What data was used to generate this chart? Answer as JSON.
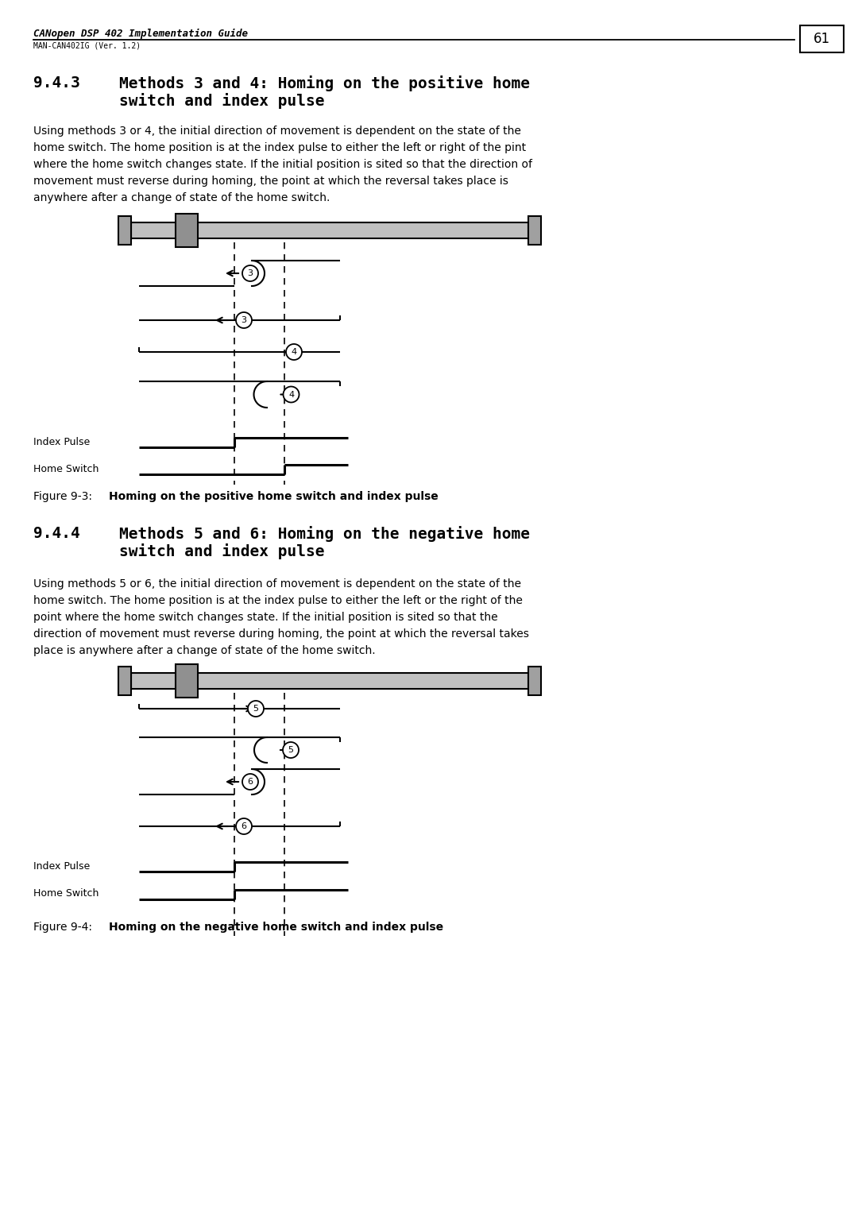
{
  "page_title": "CANopen DSP 402 Implementation Guide",
  "page_subtitle": "MAN-CAN402IG (Ver. 1.2)",
  "page_number": "61",
  "section1_number": "9.4.3",
  "section1_heading": "Methods 3 and 4: Homing on the positive home\n                    switch and index pulse",
  "section1_text_lines": [
    "Using methods 3 or 4, the initial direction of movement is dependent on the state of the",
    "home switch. The home position is at the index pulse to either the left or right of the pint",
    "where the home switch changes state. If the initial position is sited so that the direction of",
    "movement must reverse during homing, the point at which the reversal takes place is",
    "anywhere after a change of state of the home switch."
  ],
  "fig1_caption_prefix": "Figure 9-3: ",
  "fig1_caption_body": "Homing on the positive home switch and index pulse",
  "section2_number": "9.4.4",
  "section2_heading": "Methods 5 and 6: Homing on the negative home\n                    switch and index pulse",
  "section2_text_lines": [
    "Using methods 5 or 6, the initial direction of movement is dependent on the state of the",
    "home switch. The home position is at the index pulse to either the left or the right of the",
    "point where the home switch changes state. If the initial position is sited so that the",
    "direction of movement must reverse during homing, the point at which the reversal takes",
    "place is anywhere after a change of state of the home switch."
  ],
  "fig2_caption_prefix": "Figure 9-4: ",
  "fig2_caption_body": "Homing on the negative home switch and index pulse",
  "bg_color": "#ffffff"
}
